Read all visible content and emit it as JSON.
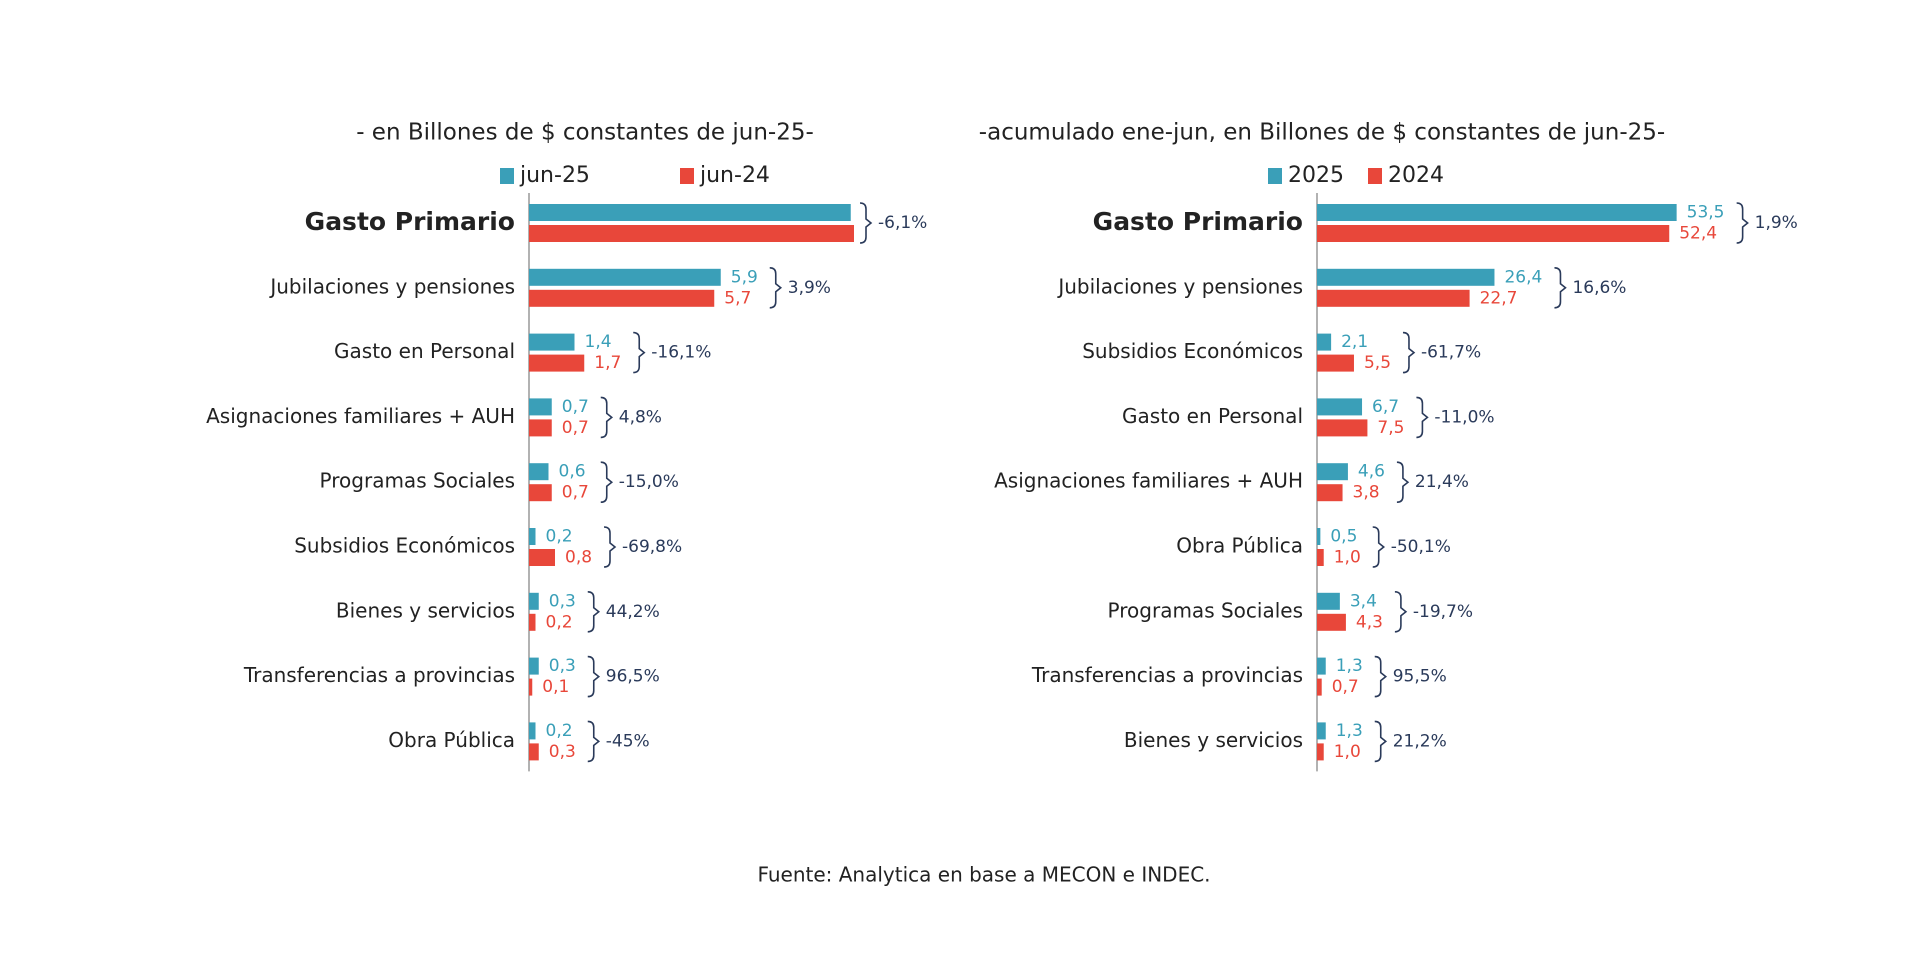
{
  "chart_data": [
    {
      "type": "bar",
      "orientation": "horizontal",
      "title": "- en Billones de $ constantes de jun-25-",
      "categories": [
        "Gasto Primario",
        "Jubilaciones y pensiones",
        "Gasto en Personal",
        "Asignaciones familiares + AUH",
        "Programas Sociales",
        "Subsidios Económicos",
        "Bienes y servicios",
        "Transferencias a provincias",
        "Obra Pública"
      ],
      "series": [
        {
          "name": "jun-25",
          "color": "#3a9fb8",
          "values": [
            9.9,
            5.9,
            1.4,
            0.7,
            0.6,
            0.2,
            0.3,
            0.3,
            0.2
          ],
          "value_labels": [
            null,
            "5,9",
            "1,4",
            "0,7",
            "0,6",
            "0,2",
            "0,3",
            "0,3",
            "0,2"
          ]
        },
        {
          "name": "jun-24",
          "color": "#e8473a",
          "values": [
            10.0,
            5.7,
            1.7,
            0.7,
            0.7,
            0.8,
            0.2,
            0.1,
            0.3
          ],
          "value_labels": [
            null,
            "5,7",
            "1,7",
            "0,7",
            "0,7",
            "0,8",
            "0,2",
            "0,1",
            "0,3"
          ]
        }
      ],
      "changes": [
        "-6,1%",
        "3,9%",
        "-16,1%",
        "4,8%",
        "-15,0%",
        "-69,8%",
        "44,2%",
        "96,5%",
        "-45%"
      ],
      "xlim": [
        0,
        10
      ]
    },
    {
      "type": "bar",
      "orientation": "horizontal",
      "title": "-acumulado ene-jun, en Billones de $ constantes de jun-25-",
      "categories": [
        "Gasto Primario",
        "Jubilaciones y pensiones",
        "Subsidios Económicos",
        "Gasto en Personal",
        "Asignaciones familiares + AUH",
        "Obra Pública",
        "Programas Sociales",
        "Transferencias a provincias",
        "Bienes y servicios"
      ],
      "series": [
        {
          "name": "2025",
          "color": "#3a9fb8",
          "values": [
            53.5,
            26.4,
            2.1,
            6.7,
            4.6,
            0.5,
            3.4,
            1.3,
            1.3
          ],
          "value_labels": [
            "53,5",
            "26,4",
            "2,1",
            "6,7",
            "4,6",
            "0,5",
            "3,4",
            "1,3",
            "1,3"
          ]
        },
        {
          "name": "2024",
          "color": "#e8473a",
          "values": [
            52.4,
            22.7,
            5.5,
            7.5,
            3.8,
            1.0,
            4.3,
            0.7,
            1.0
          ],
          "value_labels": [
            "52,4",
            "22,7",
            "5,5",
            "7,5",
            "3,8",
            "1,0",
            "4,3",
            "0,7",
            "1,0"
          ]
        }
      ],
      "changes": [
        "1,9%",
        "16,6%",
        "-61,7%",
        "-11,0%",
        "21,4%",
        "-50,1%",
        "-19,7%",
        "95,5%",
        "21,2%"
      ],
      "xlim": [
        0,
        54
      ]
    }
  ],
  "source": "Fuente: Analytica en base a MECON e INDEC."
}
